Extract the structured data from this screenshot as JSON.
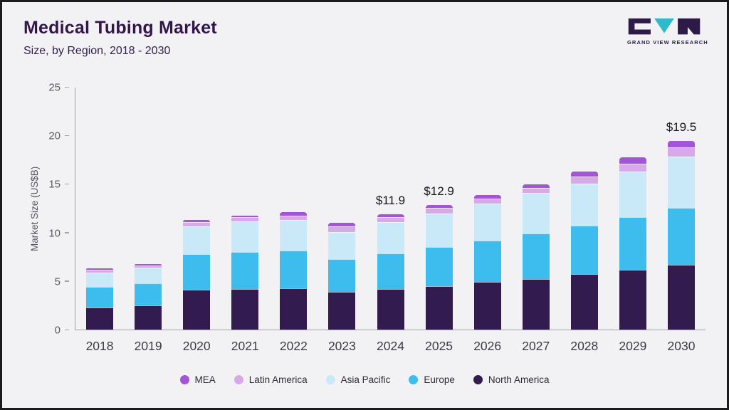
{
  "header": {
    "title": "Medical Tubing Market",
    "subtitle": "Size, by Region, 2018 - 2030",
    "logo_text": "GRAND VIEW RESEARCH"
  },
  "chart_data": {
    "type": "bar",
    "stacked": true,
    "title": "Medical Tubing Market Size, by Region, 2018 - 2030",
    "xlabel": "",
    "ylabel": "Market Size (US$B)",
    "ylim": [
      0,
      25
    ],
    "yticks": [
      0,
      5,
      10,
      15,
      20,
      25
    ],
    "grid": false,
    "legend_position": "bottom",
    "categories": [
      "2018",
      "2019",
      "2020",
      "2021",
      "2022",
      "2023",
      "2024",
      "2025",
      "2026",
      "2027",
      "2028",
      "2029",
      "2030"
    ],
    "series": [
      {
        "name": "North America",
        "color": "#321b4e",
        "values": [
          2.3,
          2.5,
          4.1,
          4.2,
          4.3,
          3.9,
          4.2,
          4.5,
          4.9,
          5.2,
          5.7,
          6.2,
          6.7
        ]
      },
      {
        "name": "Europe",
        "color": "#3dbdee",
        "values": [
          2.1,
          2.3,
          3.7,
          3.8,
          3.9,
          3.4,
          3.7,
          4.0,
          4.3,
          4.7,
          5.0,
          5.4,
          5.9
        ]
      },
      {
        "name": "Asia Pacific",
        "color": "#c9e8f8",
        "values": [
          1.5,
          1.6,
          2.9,
          3.2,
          3.1,
          2.8,
          3.2,
          3.5,
          3.8,
          4.2,
          4.4,
          4.7,
          5.3
        ]
      },
      {
        "name": "Latin America",
        "color": "#d7a9e8",
        "values": [
          0.25,
          0.25,
          0.4,
          0.4,
          0.5,
          0.55,
          0.5,
          0.55,
          0.55,
          0.55,
          0.7,
          0.85,
          0.9
        ]
      },
      {
        "name": "MEA",
        "color": "#a355d9",
        "values": [
          0.15,
          0.15,
          0.25,
          0.2,
          0.3,
          0.35,
          0.3,
          0.35,
          0.35,
          0.35,
          0.5,
          0.65,
          0.7
        ]
      }
    ],
    "totals": [
      6.3,
      6.8,
      11.35,
      11.8,
      12.1,
      11.0,
      11.9,
      12.9,
      13.9,
      15.0,
      16.3,
      17.8,
      19.5
    ],
    "annotations": {
      "2024": "$11.9",
      "2025": "$12.9",
      "2030": "$19.5"
    },
    "legend": [
      {
        "label": "MEA",
        "color": "#a355d9"
      },
      {
        "label": "Latin America",
        "color": "#d7a9e8"
      },
      {
        "label": "Asia Pacific",
        "color": "#c9e8f8"
      },
      {
        "label": "Europe",
        "color": "#3dbdee"
      },
      {
        "label": "North America",
        "color": "#321b4e"
      }
    ]
  }
}
